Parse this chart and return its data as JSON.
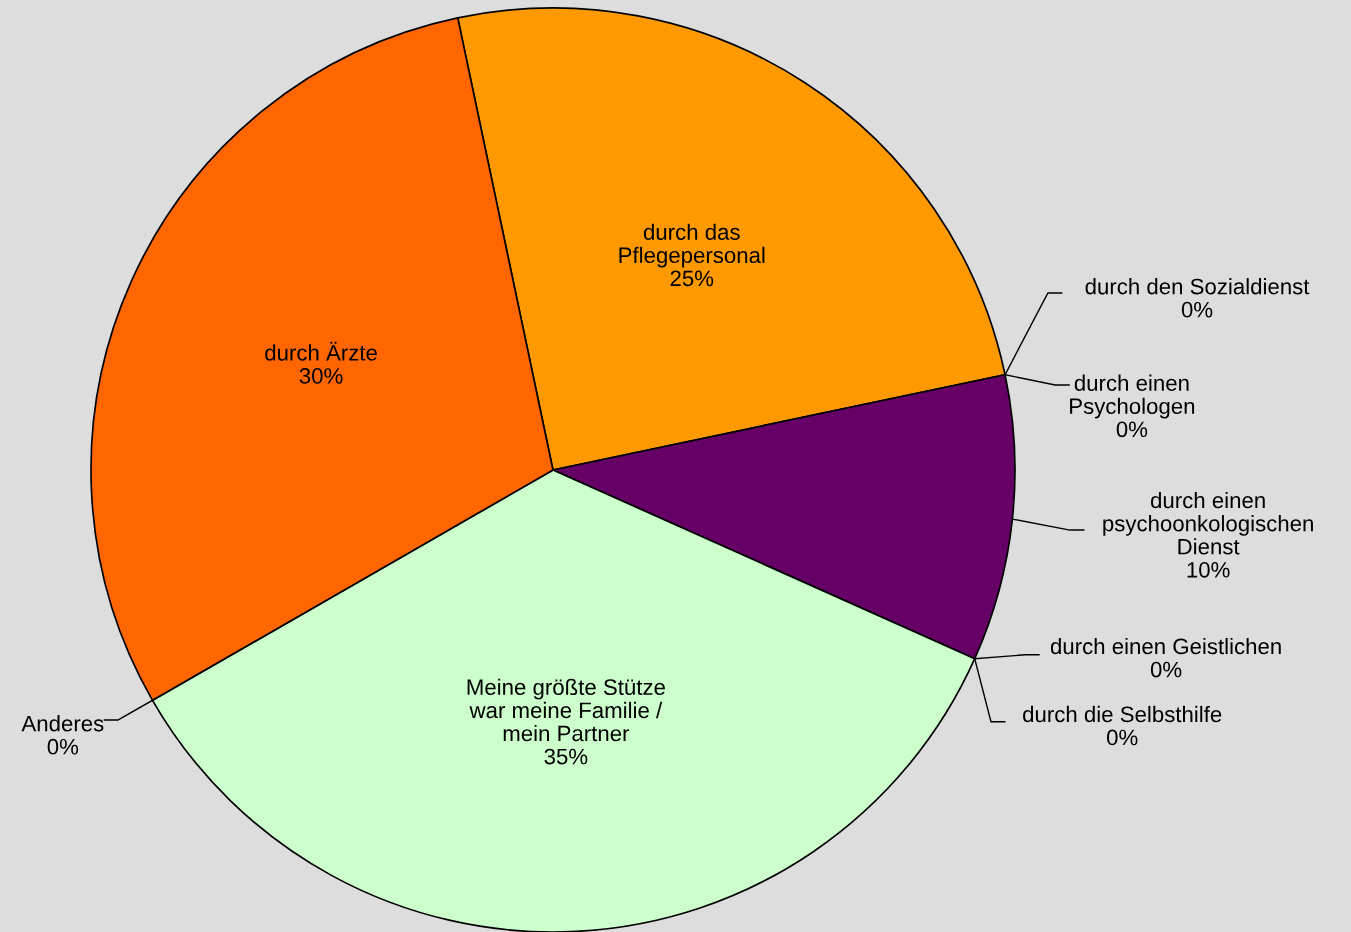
{
  "chart_data": {
    "type": "pie",
    "categories": [
      "durch das\nPflegepersonal",
      "durch den Sozialdienst",
      "durch einen\nPsychologen",
      "durch einen\npsychoonkologischen\nDienst",
      "durch einen Geistlichen",
      "durch die Selbsthilfe",
      "Meine größte Stütze\nwar meine Familie /\nmein Partner",
      "Anderes",
      "durch Ärzte"
    ],
    "values": [
      25,
      0,
      0,
      10,
      0,
      0,
      35,
      0,
      30
    ],
    "value_labels": [
      "25%",
      "0%",
      "0%",
      "10%",
      "0%",
      "0%",
      "35%",
      "0%",
      "30%"
    ],
    "colors": [
      "#ff9900",
      "#993366",
      "#ffff99",
      "#660066",
      "#ccccff",
      "#99ccff",
      "#ccffcc",
      "#3366ff",
      "#ff6600"
    ]
  }
}
